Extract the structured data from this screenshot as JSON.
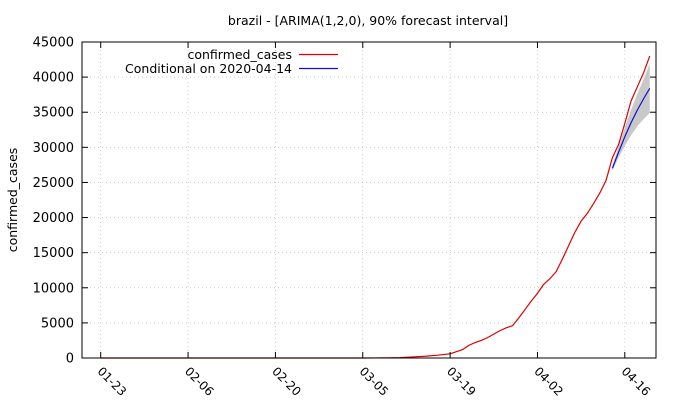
{
  "chart_data": {
    "type": "line",
    "title": "brazil -  [ARIMA(1,2,0), 90% forecast interval]",
    "ylabel": "confirmed_cases",
    "xlabel": "",
    "grid": true,
    "legend_position": "top-left",
    "x_ticks": [
      "01-23",
      "02-06",
      "02-20",
      "03-05",
      "03-19",
      "04-02",
      "04-16"
    ],
    "x_tick_day": [
      0,
      14,
      28,
      42,
      56,
      70,
      84
    ],
    "ylim": [
      0,
      45000
    ],
    "y_ticks": [
      0,
      5000,
      10000,
      15000,
      20000,
      25000,
      30000,
      35000,
      40000,
      45000
    ],
    "xlim_day": [
      -3,
      89
    ],
    "series": [
      {
        "name": "confirmed_cases",
        "color": "#e00000",
        "points": [
          [
            0,
            0
          ],
          [
            10,
            0
          ],
          [
            20,
            0
          ],
          [
            30,
            0
          ],
          [
            40,
            0
          ],
          [
            42,
            0
          ],
          [
            44,
            10
          ],
          [
            46,
            25
          ],
          [
            48,
            50
          ],
          [
            50,
            150
          ],
          [
            52,
            250
          ],
          [
            54,
            400
          ],
          [
            56,
            600
          ],
          [
            57,
            900
          ],
          [
            58,
            1200
          ],
          [
            59,
            1800
          ],
          [
            60,
            2200
          ],
          [
            61,
            2500
          ],
          [
            62,
            2900
          ],
          [
            63,
            3400
          ],
          [
            64,
            3900
          ],
          [
            65,
            4300
          ],
          [
            66,
            4600
          ],
          [
            67,
            5700
          ],
          [
            68,
            6900
          ],
          [
            69,
            8100
          ],
          [
            70,
            9200
          ],
          [
            71,
            10500
          ],
          [
            72,
            11300
          ],
          [
            73,
            12300
          ],
          [
            74,
            14100
          ],
          [
            75,
            16000
          ],
          [
            76,
            17900
          ],
          [
            77,
            19500
          ],
          [
            78,
            20600
          ],
          [
            79,
            22000
          ],
          [
            80,
            23500
          ],
          [
            81,
            25300
          ],
          [
            82,
            28500
          ],
          [
            83,
            30400
          ],
          [
            84,
            33400
          ],
          [
            85,
            36600
          ],
          [
            86,
            38600
          ],
          [
            87,
            40600
          ],
          [
            88,
            43000
          ]
        ]
      },
      {
        "name": "Conditional on 2020-04-14",
        "color": "#1010d0",
        "points": [
          [
            82,
            27000
          ],
          [
            83,
            29300
          ],
          [
            84,
            31500
          ],
          [
            85,
            33500
          ],
          [
            86,
            35300
          ],
          [
            87,
            36900
          ],
          [
            88,
            38400
          ]
        ]
      }
    ],
    "forecast_interval": {
      "color": "#c8c8c8",
      "x": [
        82,
        83,
        84,
        85,
        86,
        87,
        88
      ],
      "lower": [
        26700,
        28500,
        30200,
        31700,
        33000,
        34000,
        34900
      ],
      "upper": [
        27300,
        30100,
        32800,
        35300,
        37600,
        39700,
        41900
      ]
    }
  }
}
